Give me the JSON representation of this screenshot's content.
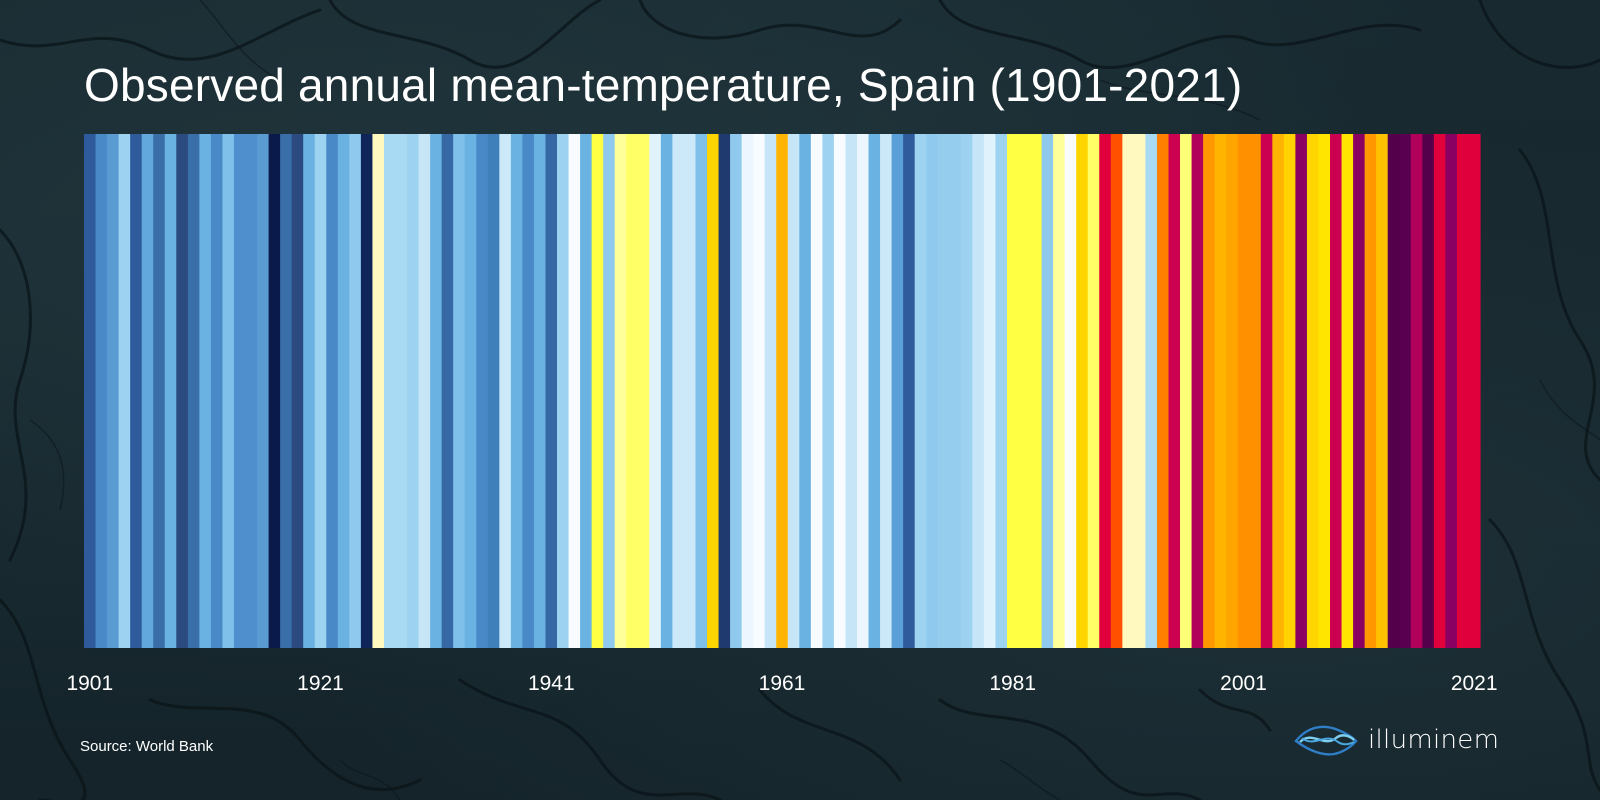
{
  "chart_data": {
    "type": "heatmap",
    "title": "Observed annual mean-temperature, Spain (1901-2021)",
    "xlabel": "",
    "ylabel": "",
    "x_range": [
      1901,
      2021
    ],
    "tick_labels": [
      "1901",
      "1921",
      "1941",
      "1961",
      "1981",
      "2001",
      "2021"
    ],
    "tick_values": [
      1901,
      1921,
      1941,
      1961,
      1981,
      2001,
      2021
    ],
    "color_scale": "blue (cooler) to red (warmer) warming stripes",
    "years": [
      1901,
      1902,
      1903,
      1904,
      1905,
      1906,
      1907,
      1908,
      1909,
      1910,
      1911,
      1912,
      1913,
      1914,
      1915,
      1916,
      1917,
      1918,
      1919,
      1920,
      1921,
      1922,
      1923,
      1924,
      1925,
      1926,
      1927,
      1928,
      1929,
      1930,
      1931,
      1932,
      1933,
      1934,
      1935,
      1936,
      1937,
      1938,
      1939,
      1940,
      1941,
      1942,
      1943,
      1944,
      1945,
      1946,
      1947,
      1948,
      1949,
      1950,
      1951,
      1952,
      1953,
      1954,
      1955,
      1956,
      1957,
      1958,
      1959,
      1960,
      1961,
      1962,
      1963,
      1964,
      1965,
      1966,
      1967,
      1968,
      1969,
      1970,
      1971,
      1972,
      1973,
      1974,
      1975,
      1976,
      1977,
      1978,
      1979,
      1980,
      1981,
      1982,
      1983,
      1984,
      1985,
      1986,
      1987,
      1988,
      1989,
      1990,
      1991,
      1992,
      1993,
      1994,
      1995,
      1996,
      1997,
      1998,
      1999,
      2000,
      2001,
      2002,
      2003,
      2004,
      2005,
      2006,
      2007,
      2008,
      2009,
      2010,
      2011,
      2012,
      2013,
      2014,
      2015,
      2016,
      2017,
      2018,
      2019,
      2020,
      2021
    ],
    "colors": [
      "#2f5b9c",
      "#4a89c8",
      "#5a9bd2",
      "#9dd3f0",
      "#2f5b9c",
      "#62a8dc",
      "#3a6ea8",
      "#6ab2e2",
      "#2a4a80",
      "#3a6ea8",
      "#6ab2e2",
      "#4a89c8",
      "#7fc0ea",
      "#4f8fce",
      "#4f8fce",
      "#5a9bd2",
      "#0a1a4a",
      "#3a6ea8",
      "#2a4a80",
      "#6ab2e2",
      "#9dd3f0",
      "#4a89c8",
      "#6ab2e2",
      "#8fcaee",
      "#0f2459",
      "#fff9c0",
      "#a9daf4",
      "#a9daf4",
      "#9dd3f0",
      "#c6e6f8",
      "#6ab2e2",
      "#3668a6",
      "#7fc0ea",
      "#6ab2e2",
      "#4a89c8",
      "#3f7fba",
      "#cce9f9",
      "#6ab2e2",
      "#4a89c8",
      "#6ab2e2",
      "#3668a6",
      "#9dd3f0",
      "#f8fbff",
      "#6ab2e2",
      "#ffff44",
      "#8fcaee",
      "#ffff99",
      "#ffff66",
      "#ffff66",
      "#e0f2fc",
      "#6ab2e2",
      "#cce9f9",
      "#cce9f9",
      "#7fc0ea",
      "#ffd500",
      "#1f3a6e",
      "#8fcaee",
      "#ecf6fe",
      "#f8fbff",
      "#c6e6f8",
      "#ffb400",
      "#c6e6f8",
      "#6ab2e2",
      "#f8fbff",
      "#9dd3f0",
      "#f8fbff",
      "#c6e6f8",
      "#ecf6fe",
      "#6ab2e2",
      "#cce9f9",
      "#5a9fd8",
      "#2f5b9c",
      "#9dd3f0",
      "#8fcaee",
      "#95cdef",
      "#95cdef",
      "#9dd3f0",
      "#c6e6f8",
      "#e0f2fc",
      "#9dd3f0",
      "#ffff44",
      "#ffff44",
      "#ffff44",
      "#8fcaee",
      "#ffff99",
      "#f8fbff",
      "#ffd500",
      "#ffff66",
      "#e0003c",
      "#ff5000",
      "#fff9c0",
      "#fff9c0",
      "#a9daf4",
      "#ff8000",
      "#cc0050",
      "#ffff77",
      "#b0005a",
      "#ff9800",
      "#ffb400",
      "#ffa500",
      "#ff9000",
      "#ff9000",
      "#cc0050",
      "#ffb400",
      "#ffd200",
      "#8a0062",
      "#ffd500",
      "#ffe500",
      "#cc0050",
      "#ffe500",
      "#8a0062",
      "#ff9800",
      "#ffc200",
      "#55004a",
      "#5a0050",
      "#b0005a",
      "#55004a",
      "#e0003c",
      "#8a0062",
      "#e0003c",
      "#e0003c"
    ]
  },
  "source": "Source: World Bank",
  "brand": {
    "name": "illuminem",
    "logo_icon": "wave-lens-logo"
  },
  "colors": {
    "background": "#15242a",
    "text": "#ffffff",
    "logo_light": "#7fd0ee",
    "logo_dark": "#2f7fc8"
  }
}
